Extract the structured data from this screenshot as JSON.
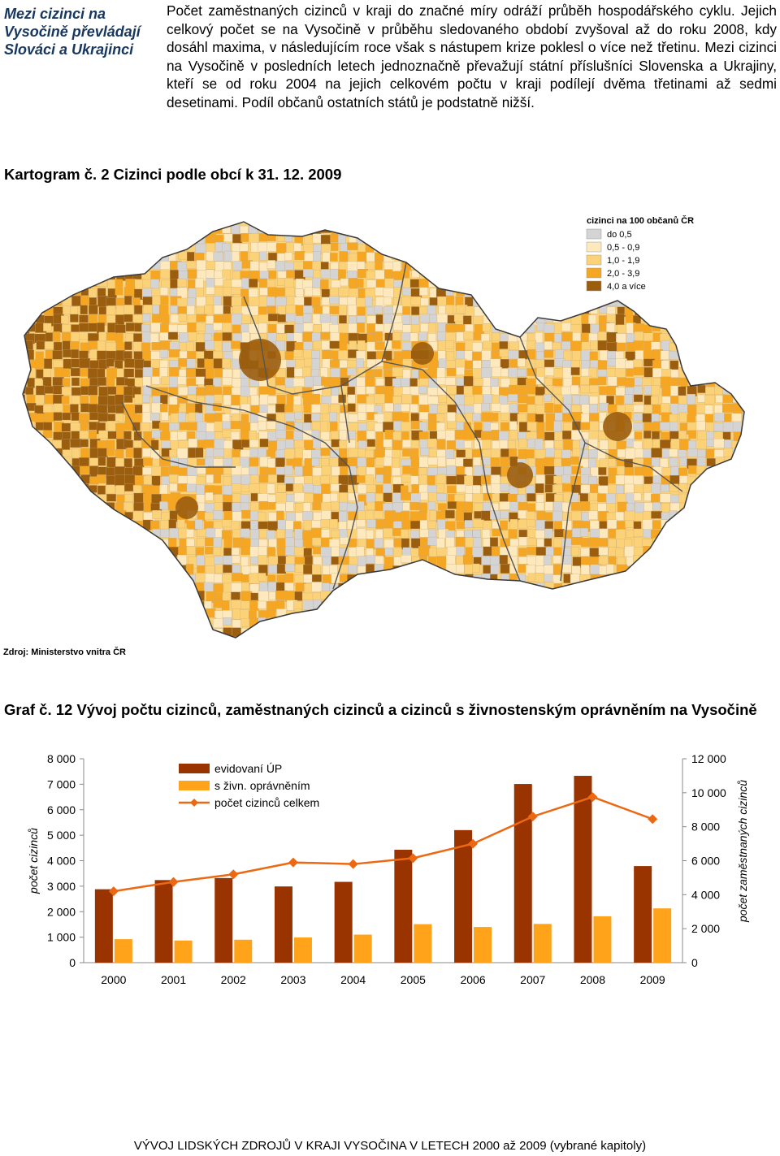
{
  "sidebar": {
    "title": "Mezi cizinci na Vysočině převládají Slováci a Ukrajinci"
  },
  "intro": {
    "paragraph": "Počet zaměstnaných cizinců v kraji do značné míry odráží průběh hospodářského cyklu. Jejich celkový počet se na Vysočině v průběhu sledovaného období zvyšoval až do roku 2008, kdy dosáhl maxima, v následujícím roce však s nástupem krize poklesl o více než třetinu. Mezi cizinci na Vysočině v posledních letech jednoznačně převažují státní příslušníci Slovenska a Ukrajiny, kteří se od roku 2004 na jejich celkovém počtu v kraji podílejí dvěma třetinami až sedmi desetinami. Podíl občanů ostatních států je podstatně nižší."
  },
  "map": {
    "caption": "Kartogram č. 2 Cizinci podle obcí k 31. 12. 2009",
    "legend_title": "cizinci na 100 občanů ČR",
    "legend": [
      {
        "label": "do 0,5",
        "color": "#d4d4d4"
      },
      {
        "label": "0,5 - 0,9",
        "color": "#fde9bd"
      },
      {
        "label": "1,0 - 1,9",
        "color": "#fbd278"
      },
      {
        "label": "2,0 - 3,9",
        "color": "#f5a623"
      },
      {
        "label": "4,0 a více",
        "color": "#9b5d0e"
      }
    ],
    "source": "Zdroj: Ministerstvo vnitra ČR"
  },
  "chart_caption": "Graf č. 12 Vývoj počtu cizinců, zaměstnaných cizinců a cizinců s živnostenským oprávněním na Vysočině",
  "chart_data": {
    "type": "bar",
    "categories": [
      "2000",
      "2001",
      "2002",
      "2003",
      "2004",
      "2005",
      "2006",
      "2007",
      "2008",
      "2009"
    ],
    "series": [
      {
        "name": "evidovaní ÚP",
        "type": "bar",
        "axis": "left",
        "color": "#993300",
        "values": [
          2880,
          3240,
          3320,
          2990,
          3170,
          4430,
          5200,
          7010,
          7330,
          3790
        ]
      },
      {
        "name": "s živn. oprávněním",
        "type": "bar",
        "axis": "left",
        "color": "#ffa31a",
        "values": [
          920,
          870,
          900,
          990,
          1100,
          1510,
          1400,
          1520,
          1820,
          2130
        ]
      },
      {
        "name": "počet cizinců celkem",
        "type": "line",
        "axis": "right",
        "color": "#ec6812",
        "values": [
          4200,
          4750,
          5200,
          5900,
          5800,
          6150,
          7000,
          8600,
          9750,
          8450
        ]
      }
    ],
    "ylabel_left": "počet cizinců",
    "ylabel_right": "počet zaměstnaných cizinců",
    "ylim_left": [
      0,
      8000
    ],
    "ylim_right": [
      0,
      12000
    ],
    "yticks_left": [
      "0",
      "1 000",
      "2 000",
      "3 000",
      "4 000",
      "5 000",
      "6 000",
      "7 000",
      "8 000"
    ],
    "yticks_right": [
      "0",
      "2 000",
      "4 000",
      "6 000",
      "8 000",
      "10 000",
      "12 000"
    ],
    "legend_position": "top-left",
    "grid": false
  },
  "footer": {
    "text": "VÝVOJ LIDSKÝCH ZDROJŮ V KRAJI VYSOČINA V LETECH 2000 až 2009 (vybrané kapitoly)"
  }
}
